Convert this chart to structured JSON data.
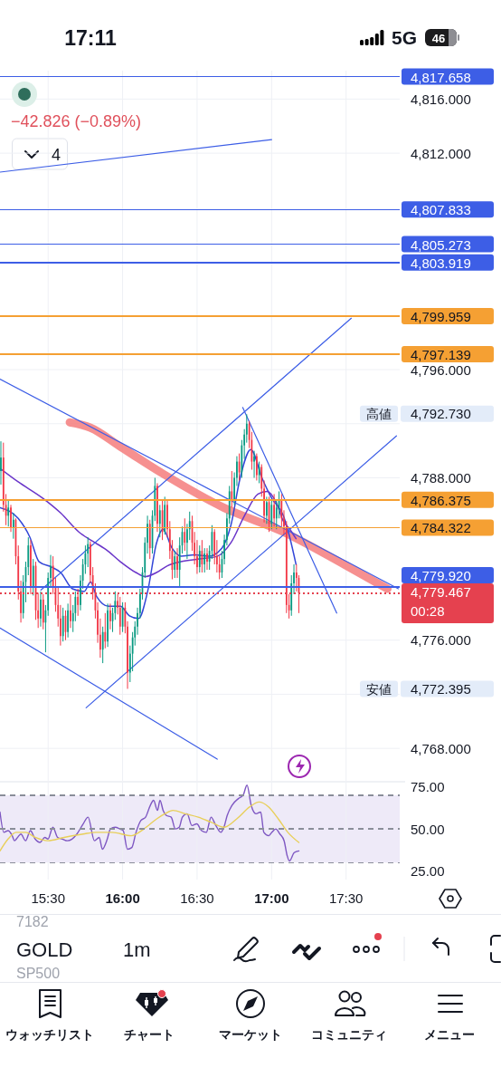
{
  "chart_data": [
    {
      "type": "candlestick",
      "x": [
        15.183,
        15.2,
        15.217,
        15.233,
        15.25,
        15.267,
        15.283,
        15.3,
        15.317,
        15.333,
        15.35,
        15.367,
        15.383,
        15.4,
        15.417,
        15.433,
        15.45,
        15.467,
        15.483,
        15.5,
        15.517,
        15.533,
        15.55,
        15.567,
        15.583,
        15.6,
        15.617,
        15.633,
        15.65,
        15.667,
        15.683,
        15.7,
        15.717,
        15.733,
        15.75,
        15.767,
        15.783,
        15.8,
        15.817,
        15.833,
        15.85,
        15.867,
        15.883,
        15.9,
        15.917,
        15.933,
        15.95,
        15.967,
        15.983,
        16,
        16.017,
        16.033,
        16.05,
        16.067,
        16.083,
        16.1,
        16.117,
        16.133,
        16.15,
        16.167,
        16.183,
        16.2,
        16.217,
        16.233,
        16.25,
        16.267,
        16.283,
        16.3,
        16.317,
        16.333,
        16.35,
        16.367,
        16.383,
        16.4,
        16.417,
        16.433,
        16.45,
        16.467,
        16.483,
        16.5,
        16.517,
        16.533,
        16.55,
        16.567,
        16.583,
        16.6,
        16.617,
        16.633,
        16.65,
        16.667,
        16.683,
        16.7,
        16.717,
        16.733,
        16.75,
        16.767,
        16.783,
        16.8,
        16.817,
        16.833,
        16.85,
        16.867,
        16.883,
        16.9,
        16.917,
        16.933,
        16.95,
        16.967,
        16.983,
        17,
        17.017,
        17.033,
        17.05,
        17.067,
        17.083,
        17.1,
        17.117,
        17.133,
        17.15,
        17.167,
        17.183
      ],
      "ohlc": [
        [
          4788.5,
          4790.7,
          4787.5,
          4789.5
        ],
        [
          4789.5,
          4790.6,
          4785.5,
          4786
        ],
        [
          4786,
          4786.8,
          4784.5,
          4785.2
        ],
        [
          4785.2,
          4786.3,
          4784.4,
          4785.8
        ],
        [
          4785.8,
          4786,
          4784,
          4784.3
        ],
        [
          4784.3,
          4785.4,
          4783.5,
          4784.9
        ],
        [
          4784.9,
          4785,
          4781.6,
          4782.2
        ],
        [
          4782.2,
          4783,
          4779,
          4779.6
        ],
        [
          4779.6,
          4780.4,
          4777.3,
          4778
        ],
        [
          4778,
          4780.8,
          4777.6,
          4780.3
        ],
        [
          4780.3,
          4781.8,
          4778.8,
          4781.4
        ],
        [
          4781.4,
          4783.6,
          4780.8,
          4783
        ],
        [
          4783,
          4783.4,
          4779.4,
          4780
        ],
        [
          4780,
          4782,
          4779.3,
          4781.5
        ],
        [
          4781.5,
          4781.8,
          4777.5,
          4778.2
        ],
        [
          4778.2,
          4779.5,
          4776.9,
          4777.6
        ],
        [
          4777.6,
          4779.6,
          4777,
          4779
        ],
        [
          4779,
          4779.4,
          4776.8,
          4777.3
        ],
        [
          4777.3,
          4778.6,
          4775.1,
          4778.2
        ],
        [
          4778.2,
          4781,
          4777.8,
          4780.6
        ],
        [
          4780.6,
          4782.3,
          4779.9,
          4781.5
        ],
        [
          4781.5,
          4782.2,
          4779.4,
          4780
        ],
        [
          4780,
          4780.6,
          4778.1,
          4778.6
        ],
        [
          4778.6,
          4779.9,
          4777,
          4777.6
        ],
        [
          4777.6,
          4778.6,
          4775.6,
          4776.3
        ],
        [
          4776.3,
          4778.4,
          4775.9,
          4777.8
        ],
        [
          4777.8,
          4778.2,
          4776,
          4776.6
        ],
        [
          4776.6,
          4778.7,
          4776.2,
          4778.2
        ],
        [
          4778.2,
          4779.4,
          4776.9,
          4777.4
        ],
        [
          4777.4,
          4778.6,
          4776.6,
          4778
        ],
        [
          4778,
          4779.6,
          4777.4,
          4779.2
        ],
        [
          4779.2,
          4779.8,
          4777.8,
          4778.6
        ],
        [
          4778.6,
          4780.8,
          4778.2,
          4780.4
        ],
        [
          4780.4,
          4782,
          4779.8,
          4781.6
        ],
        [
          4781.6,
          4783,
          4780.9,
          4782.4
        ],
        [
          4782.4,
          4783.6,
          4781.4,
          4783.1
        ],
        [
          4783.1,
          4783.3,
          4780.2,
          4780.8
        ],
        [
          4780.8,
          4781.4,
          4779,
          4779.5
        ],
        [
          4779.5,
          4780.2,
          4777.6,
          4778.2
        ],
        [
          4778.2,
          4778.8,
          4775.8,
          4776.4
        ],
        [
          4776.4,
          4777.6,
          4774.7,
          4775.3
        ],
        [
          4775.3,
          4777,
          4774.3,
          4776.6
        ],
        [
          4776.6,
          4778,
          4775.4,
          4775.9
        ],
        [
          4775.9,
          4778.7,
          4775.5,
          4778.2
        ],
        [
          4778.2,
          4778.7,
          4776.8,
          4777.4
        ],
        [
          4777.4,
          4778.4,
          4776.6,
          4778
        ],
        [
          4778,
          4779.6,
          4777.5,
          4778.9
        ],
        [
          4778.9,
          4779.4,
          4777.9,
          4778.4
        ],
        [
          4778.4,
          4779.2,
          4776.4,
          4777
        ],
        [
          4777,
          4778.8,
          4776.6,
          4778.4
        ],
        [
          4778.4,
          4778.8,
          4776.5,
          4777
        ],
        [
          4777,
          4777.4,
          4772.4,
          4773.6
        ],
        [
          4773.6,
          4775.6,
          4772.9,
          4775
        ],
        [
          4775,
          4776.6,
          4773.7,
          4776.2
        ],
        [
          4776.2,
          4777.4,
          4775.6,
          4777
        ],
        [
          4777,
          4778.4,
          4776.4,
          4778
        ],
        [
          4778,
          4779.8,
          4777.6,
          4779.4
        ],
        [
          4779.4,
          4781.4,
          4779,
          4781
        ],
        [
          4781,
          4783.6,
          4780.6,
          4783.2
        ],
        [
          4783.2,
          4785.2,
          4782.4,
          4784.6
        ],
        [
          4784.6,
          4784.9,
          4782,
          4782.8
        ],
        [
          4782.8,
          4785.6,
          4782.4,
          4785.2
        ],
        [
          4785.2,
          4788,
          4784.8,
          4787.4
        ],
        [
          4787.4,
          4787.6,
          4784,
          4784.6
        ],
        [
          4784.6,
          4786,
          4783.6,
          4785.6
        ],
        [
          4785.6,
          4786.4,
          4783.4,
          4784
        ],
        [
          4784,
          4786.6,
          4783.8,
          4786
        ],
        [
          4786,
          4786.4,
          4783.6,
          4784.2
        ],
        [
          4784.2,
          4784.8,
          4782,
          4782.6
        ],
        [
          4782.6,
          4783.4,
          4780.5,
          4781.2
        ],
        [
          4781.2,
          4782.6,
          4780.6,
          4782.2
        ],
        [
          4782.2,
          4782.8,
          4780.6,
          4781.2
        ],
        [
          4781.2,
          4783.6,
          4780,
          4783
        ],
        [
          4783,
          4784.4,
          4782.4,
          4784
        ],
        [
          4784,
          4785,
          4782.6,
          4783.2
        ],
        [
          4783.2,
          4784.6,
          4782,
          4784.2
        ],
        [
          4784.2,
          4785.5,
          4783.4,
          4784.8
        ],
        [
          4784.8,
          4785.2,
          4782.6,
          4783.2
        ],
        [
          4783.2,
          4784,
          4781.6,
          4782.2
        ],
        [
          4782.2,
          4783.4,
          4780.9,
          4781.4
        ],
        [
          4781.4,
          4783,
          4781,
          4782.6
        ],
        [
          4782.6,
          4783.4,
          4781,
          4781.6
        ],
        [
          4781.6,
          4782.8,
          4781,
          4782.4
        ],
        [
          4782.4,
          4782.8,
          4781.2,
          4781.8
        ],
        [
          4781.8,
          4783,
          4781.2,
          4782.6
        ],
        [
          4782.6,
          4784.5,
          4782,
          4784
        ],
        [
          4784,
          4784.2,
          4781.6,
          4782.2
        ],
        [
          4782.2,
          4783.4,
          4781,
          4781.6
        ],
        [
          4781.6,
          4782.2,
          4780.5,
          4781
        ],
        [
          4781,
          4782.6,
          4780.6,
          4782
        ],
        [
          4782,
          4783.8,
          4781.6,
          4783.4
        ],
        [
          4783.4,
          4785.4,
          4783,
          4785
        ],
        [
          4785,
          4787.4,
          4784.6,
          4787
        ],
        [
          4787,
          4788.5,
          4785.8,
          4786.4
        ],
        [
          4786.4,
          4788.4,
          4786,
          4788
        ],
        [
          4788,
          4789.6,
          4787.4,
          4789.2
        ],
        [
          4789.2,
          4789.8,
          4787.8,
          4788.4
        ],
        [
          4788.4,
          4790.8,
          4788,
          4790.4
        ],
        [
          4790.4,
          4791.6,
          4789.4,
          4791.2
        ],
        [
          4791.2,
          4792.7,
          4790.6,
          4792
        ],
        [
          4792,
          4792.2,
          4790.2,
          4790.8
        ],
        [
          4790.8,
          4791.4,
          4788.6,
          4789.2
        ],
        [
          4789.2,
          4790,
          4788,
          4789.6
        ],
        [
          4789.6,
          4789.8,
          4787.8,
          4788.2
        ],
        [
          4788.2,
          4789.2,
          4787.6,
          4788.8
        ],
        [
          4788.8,
          4789,
          4786.6,
          4787.2
        ],
        [
          4787.2,
          4787.8,
          4784.7,
          4785.2
        ],
        [
          4785.2,
          4786.6,
          4784.6,
          4786.2
        ],
        [
          4786.2,
          4786.6,
          4784,
          4784.6
        ],
        [
          4784.6,
          4786.4,
          4784.2,
          4786
        ],
        [
          4786,
          4786.8,
          4784.4,
          4785
        ],
        [
          4785,
          4786.4,
          4784.2,
          4785.8
        ],
        [
          4785.8,
          4787,
          4785,
          4786.4
        ],
        [
          4786.4,
          4786.8,
          4784.4,
          4785
        ],
        [
          4785,
          4785.6,
          4783.8,
          4784.4
        ],
        [
          4784.4,
          4784.8,
          4778,
          4778.6
        ],
        [
          4778.6,
          4779.4,
          4777.6,
          4778.2
        ],
        [
          4778.2,
          4780.8,
          4777.8,
          4780.2
        ],
        [
          4780.2,
          4781.6,
          4779.4,
          4781
        ],
        [
          4781,
          4781.6,
          4779.6,
          4780.6
        ],
        [
          4780.6,
          4780.8,
          4778,
          4779.467
        ]
      ],
      "series": [
        {
          "type": "line",
          "color": "#f47c7c",
          "x": [
            15.645,
            15.785,
            15.985,
            16.271,
            16.678,
            17.079,
            17.486,
            17.778
          ],
          "values": [
            4792.1,
            4791.7,
            4790.3,
            4788.3,
            4785.8,
            4784,
            4781.6,
            4779.8
          ]
        },
        {
          "type": "line",
          "color": "#3346d8",
          "x": [
            15.177,
            15.299,
            15.378,
            15.439,
            15.524,
            15.584,
            15.663,
            15.742,
            15.785,
            15.827,
            15.906,
            15.985,
            16.046,
            16.107,
            16.168,
            16.228,
            16.271,
            16.332,
            16.392,
            16.484,
            16.575,
            16.666,
            16.727,
            16.787,
            16.86,
            16.939,
            17,
            17.079,
            17.122,
            17.164
          ],
          "values": [
            4785.8,
            4785,
            4783.6,
            4781.8,
            4781.4,
            4781,
            4779.8,
            4779.6,
            4780.3,
            4779.2,
            4778.5,
            4778.5,
            4777.8,
            4777.6,
            4779.6,
            4783.2,
            4784.2,
            4782.8,
            4782.2,
            4782.3,
            4782.2,
            4782.8,
            4784.5,
            4787.9,
            4790.1,
            4787.9,
            4786.5,
            4785.2,
            4783.6,
            4781.6
          ]
        },
        {
          "type": "line",
          "color": "#6a35c9",
          "x": [
            15.177,
            15.299,
            15.463,
            15.584,
            15.706,
            15.785,
            15.888,
            15.985,
            16.089,
            16.15,
            16.228,
            16.301,
            16.392,
            16.514,
            16.635,
            16.727,
            16.818,
            16.909,
            16.97,
            17.03,
            17.079,
            17.122,
            17.164
          ],
          "values": [
            4788.7,
            4787.7,
            4786.5,
            4785.4,
            4784,
            4783.4,
            4782.7,
            4781.8,
            4781,
            4780.7,
            4781,
            4781.5,
            4781.8,
            4782,
            4782.2,
            4783.2,
            4785.2,
            4786.8,
            4787,
            4786.2,
            4784.8,
            4784.2,
            4783.5
          ]
        },
        {
          "type": "line",
          "color": "#3d5ee6",
          "x": [
            15.177,
            17
          ],
          "values": [
            4810.6,
            4813
          ]
        },
        {
          "type": "line",
          "color": "#3d5ee6",
          "x": [
            15.177,
            17.851
          ],
          "values": [
            4795.3,
            4779.8
          ]
        },
        {
          "type": "line",
          "color": "#3d5ee6",
          "x": [
            15.177,
            16.635
          ],
          "values": [
            4776.9,
            4767.2
          ]
        },
        {
          "type": "line",
          "color": "#3d5ee6",
          "x": [
            15.755,
            17.838
          ],
          "values": [
            4771,
            4791.1
          ]
        },
        {
          "type": "line",
          "color": "#3d5ee6",
          "x": [
            15.451,
            17.535
          ],
          "values": [
            4779.7,
            4799.8
          ]
        },
        {
          "type": "line",
          "color": "#3d5ee6",
          "x": [
            16.806,
            17.437
          ],
          "values": [
            4793.2,
            4778
          ]
        }
      ],
      "xlim": [
        15.177,
        17.86
      ],
      "xticks": [
        {
          "value": 15.5,
          "label": null
        },
        {
          "value": 16,
          "label": null
        },
        {
          "value": 16.5,
          "label": null
        },
        {
          "value": 17,
          "label": null
        },
        {
          "value": 17.5,
          "label": null
        }
      ],
      "ylim": [
        4765.6,
        4818.1
      ],
      "yticks": [
        {
          "value": 4768,
          "label": "4,768.000"
        },
        {
          "value": 4772,
          "label": null
        },
        {
          "value": 4776,
          "label": "4,776.000"
        },
        {
          "value": 4788,
          "label": "4,788.000"
        },
        {
          "value": 4792,
          "label": null
        },
        {
          "value": 4796,
          "label": "4,796.000"
        },
        {
          "value": 4812,
          "label": "4,812.000"
        },
        {
          "value": 4816,
          "label": "4,816.000"
        }
      ],
      "grid": true,
      "tick_labels": "y",
      "ref_lines": [
        {
          "axis": "y",
          "value": 4817.658,
          "label": "4,817.658",
          "color": "#3d5ee6"
        },
        {
          "axis": "y",
          "value": 4807.833,
          "label": "4,807.833",
          "color": "#3d5ee6"
        },
        {
          "axis": "y",
          "value": 4805.273,
          "label": "4,805.273",
          "color": "#3d5ee6"
        },
        {
          "axis": "y",
          "value": 4803.919,
          "label": "4,803.919",
          "color": "#3d5ee6"
        },
        {
          "axis": "y",
          "value": 4799.959,
          "label": "4,799.959",
          "color": "#f5a033"
        },
        {
          "axis": "y",
          "value": 4797.139,
          "label": "4,797.139",
          "color": "#f5a033"
        },
        {
          "axis": "y",
          "value": 4786.375,
          "label": "4,786.375",
          "color": "#f5a033"
        },
        {
          "axis": "y",
          "value": 4784.322,
          "label": "4,784.322",
          "color": "#f5a033"
        },
        {
          "axis": "y",
          "value": 4779.92,
          "label": "4,779.920",
          "color": "#3d5ee6"
        },
        {
          "axis": "y",
          "value": 4779.467,
          "label": "4,779.467",
          "color": "#e5414f",
          "line_style": "dotted"
        }
      ],
      "annotations": [
        "−42.826 (−0.89%)",
        "4",
        "00:28",
        {
          "text": "高値",
          "y": 4792.73
        },
        "4,792.730",
        {
          "text": "安値",
          "y": 4772.395
        },
        "4,772.395"
      ]
    },
    {
      "type": "line",
      "series": [
        {
          "color": "#7e57c2",
          "x": [
            15.177,
            15.203,
            15.231,
            15.259,
            15.274,
            15.295,
            15.317,
            15.349,
            15.381,
            15.413,
            15.446,
            15.478,
            15.499,
            15.532,
            15.564,
            15.596,
            15.629,
            15.66,
            15.693,
            15.735,
            15.768,
            15.811,
            15.843,
            15.864,
            15.897,
            15.918,
            15.95,
            15.982,
            16.004,
            16.032,
            16.062,
            16.09,
            16.122,
            16.154,
            16.186,
            16.208,
            16.234,
            16.251,
            16.272,
            16.294,
            16.326,
            16.354,
            16.38,
            16.401,
            16.433,
            16.465,
            16.498,
            16.53,
            16.562,
            16.594,
            16.626,
            16.659,
            16.68,
            16.702,
            16.734,
            16.777,
            16.809,
            16.835,
            16.863,
            16.895,
            16.927,
            16.948,
            16.981,
            17.002,
            17.028,
            17.056,
            17.084,
            17.105,
            17.12,
            17.152,
            17.183
          ],
          "values": [
            60,
            48,
            49,
            46,
            43,
            45,
            47,
            43,
            49,
            44,
            42,
            45,
            44,
            51,
            45,
            44,
            43,
            44,
            47,
            53,
            57,
            43,
            45,
            38,
            44,
            50,
            51,
            50,
            49,
            38,
            39,
            48,
            55,
            57,
            64,
            67,
            61,
            67,
            61,
            58,
            57,
            50,
            51,
            57,
            59,
            52,
            53,
            49,
            48,
            57,
            52,
            48,
            51,
            58,
            64,
            68,
            70,
            76,
            64,
            59,
            60,
            48,
            46,
            48,
            50,
            47,
            43,
            34,
            31,
            36,
            37
          ]
        },
        {
          "color": "#e8cf5a",
          "x": [
            15.177,
            15.231,
            15.285,
            15.349,
            15.413,
            15.499,
            15.607,
            15.735,
            15.821,
            15.929,
            16.058,
            16.143,
            16.229,
            16.283,
            16.337,
            16.422,
            16.508,
            16.594,
            16.68,
            16.766,
            16.852,
            16.916,
            16.981,
            17.045,
            17.109,
            17.183
          ],
          "values": [
            37,
            44,
            48,
            48,
            45,
            43,
            45,
            47,
            48,
            48,
            46,
            50,
            56,
            59,
            61,
            59,
            57,
            54,
            51,
            56,
            63,
            66,
            63,
            56,
            48,
            42
          ]
        }
      ],
      "xlim": [
        15.177,
        17.86
      ],
      "xticks": [
        {
          "value": 15.5,
          "label": "15:30"
        },
        {
          "value": 16,
          "label": "16:00"
        },
        {
          "value": 16.5,
          "label": "16:30"
        },
        {
          "value": 17,
          "label": "17:00"
        },
        {
          "value": 17.5,
          "label": "17:30"
        }
      ],
      "ylim": [
        20,
        78
      ],
      "yticks": [
        {
          "value": 25,
          "label": "25.00"
        },
        {
          "value": 50,
          "label": "50.00"
        },
        {
          "value": 75,
          "label": "75.00"
        }
      ],
      "grid": "x",
      "ref_lines": [
        {
          "axis": "y",
          "value": 70,
          "color": "#8a8e99",
          "line_style": "dashed"
        },
        {
          "axis": "y",
          "value": 50,
          "color": "#8a8e99",
          "line_style": "dashed"
        },
        {
          "axis": "y",
          "value": 30,
          "color": "#8a8e99",
          "line_style": "dashed"
        }
      ],
      "bands": [
        {
          "axis": "y",
          "from": 30,
          "to": 70,
          "color": "#eeeaf8"
        }
      ]
    },
    {
      "type": "other",
      "annotations": [
        "17:11",
        "5G",
        "46",
        "7182",
        "GOLD",
        "1m",
        "SP500",
        "ウォッチリスト",
        "チャート",
        "マーケット",
        "コミュニティ",
        "メニュー"
      ]
    }
  ]
}
